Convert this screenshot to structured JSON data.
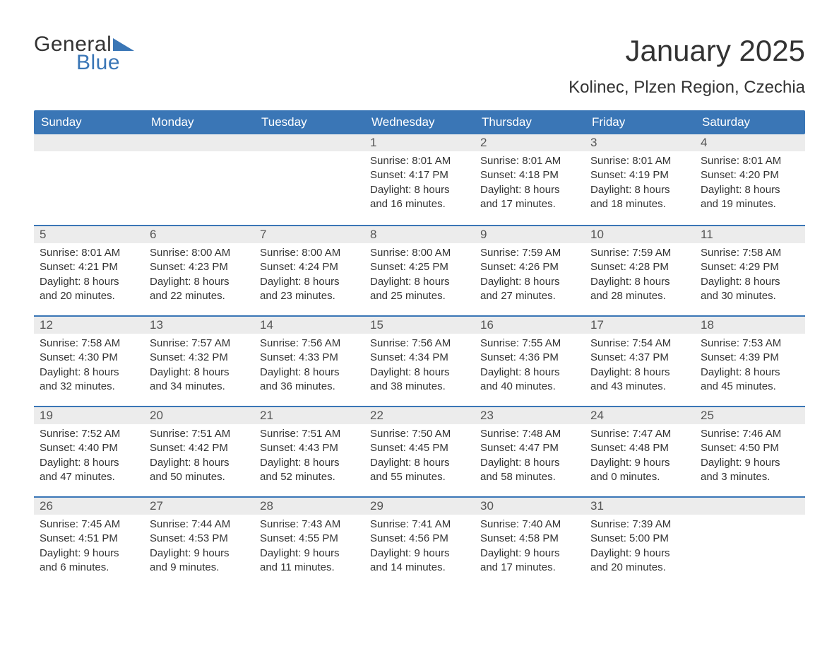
{
  "logo": {
    "text1": "General",
    "text2": "Blue",
    "tri_color": "#3a76b6"
  },
  "header": {
    "month_title": "January 2025",
    "location": "Kolinec, Plzen Region, Czechia"
  },
  "colors": {
    "header_bg": "#3a76b6",
    "header_text": "#ffffff",
    "daynum_bg": "#ececec",
    "border": "#3a76b6",
    "text": "#333333"
  },
  "day_names": [
    "Sunday",
    "Monday",
    "Tuesday",
    "Wednesday",
    "Thursday",
    "Friday",
    "Saturday"
  ],
  "weeks": [
    [
      {
        "day": "",
        "sunrise": "",
        "sunset": "",
        "daylight": ""
      },
      {
        "day": "",
        "sunrise": "",
        "sunset": "",
        "daylight": ""
      },
      {
        "day": "",
        "sunrise": "",
        "sunset": "",
        "daylight": ""
      },
      {
        "day": "1",
        "sunrise": "Sunrise: 8:01 AM",
        "sunset": "Sunset: 4:17 PM",
        "daylight": "Daylight: 8 hours and 16 minutes."
      },
      {
        "day": "2",
        "sunrise": "Sunrise: 8:01 AM",
        "sunset": "Sunset: 4:18 PM",
        "daylight": "Daylight: 8 hours and 17 minutes."
      },
      {
        "day": "3",
        "sunrise": "Sunrise: 8:01 AM",
        "sunset": "Sunset: 4:19 PM",
        "daylight": "Daylight: 8 hours and 18 minutes."
      },
      {
        "day": "4",
        "sunrise": "Sunrise: 8:01 AM",
        "sunset": "Sunset: 4:20 PM",
        "daylight": "Daylight: 8 hours and 19 minutes."
      }
    ],
    [
      {
        "day": "5",
        "sunrise": "Sunrise: 8:01 AM",
        "sunset": "Sunset: 4:21 PM",
        "daylight": "Daylight: 8 hours and 20 minutes."
      },
      {
        "day": "6",
        "sunrise": "Sunrise: 8:00 AM",
        "sunset": "Sunset: 4:23 PM",
        "daylight": "Daylight: 8 hours and 22 minutes."
      },
      {
        "day": "7",
        "sunrise": "Sunrise: 8:00 AM",
        "sunset": "Sunset: 4:24 PM",
        "daylight": "Daylight: 8 hours and 23 minutes."
      },
      {
        "day": "8",
        "sunrise": "Sunrise: 8:00 AM",
        "sunset": "Sunset: 4:25 PM",
        "daylight": "Daylight: 8 hours and 25 minutes."
      },
      {
        "day": "9",
        "sunrise": "Sunrise: 7:59 AM",
        "sunset": "Sunset: 4:26 PM",
        "daylight": "Daylight: 8 hours and 27 minutes."
      },
      {
        "day": "10",
        "sunrise": "Sunrise: 7:59 AM",
        "sunset": "Sunset: 4:28 PM",
        "daylight": "Daylight: 8 hours and 28 minutes."
      },
      {
        "day": "11",
        "sunrise": "Sunrise: 7:58 AM",
        "sunset": "Sunset: 4:29 PM",
        "daylight": "Daylight: 8 hours and 30 minutes."
      }
    ],
    [
      {
        "day": "12",
        "sunrise": "Sunrise: 7:58 AM",
        "sunset": "Sunset: 4:30 PM",
        "daylight": "Daylight: 8 hours and 32 minutes."
      },
      {
        "day": "13",
        "sunrise": "Sunrise: 7:57 AM",
        "sunset": "Sunset: 4:32 PM",
        "daylight": "Daylight: 8 hours and 34 minutes."
      },
      {
        "day": "14",
        "sunrise": "Sunrise: 7:56 AM",
        "sunset": "Sunset: 4:33 PM",
        "daylight": "Daylight: 8 hours and 36 minutes."
      },
      {
        "day": "15",
        "sunrise": "Sunrise: 7:56 AM",
        "sunset": "Sunset: 4:34 PM",
        "daylight": "Daylight: 8 hours and 38 minutes."
      },
      {
        "day": "16",
        "sunrise": "Sunrise: 7:55 AM",
        "sunset": "Sunset: 4:36 PM",
        "daylight": "Daylight: 8 hours and 40 minutes."
      },
      {
        "day": "17",
        "sunrise": "Sunrise: 7:54 AM",
        "sunset": "Sunset: 4:37 PM",
        "daylight": "Daylight: 8 hours and 43 minutes."
      },
      {
        "day": "18",
        "sunrise": "Sunrise: 7:53 AM",
        "sunset": "Sunset: 4:39 PM",
        "daylight": "Daylight: 8 hours and 45 minutes."
      }
    ],
    [
      {
        "day": "19",
        "sunrise": "Sunrise: 7:52 AM",
        "sunset": "Sunset: 4:40 PM",
        "daylight": "Daylight: 8 hours and 47 minutes."
      },
      {
        "day": "20",
        "sunrise": "Sunrise: 7:51 AM",
        "sunset": "Sunset: 4:42 PM",
        "daylight": "Daylight: 8 hours and 50 minutes."
      },
      {
        "day": "21",
        "sunrise": "Sunrise: 7:51 AM",
        "sunset": "Sunset: 4:43 PM",
        "daylight": "Daylight: 8 hours and 52 minutes."
      },
      {
        "day": "22",
        "sunrise": "Sunrise: 7:50 AM",
        "sunset": "Sunset: 4:45 PM",
        "daylight": "Daylight: 8 hours and 55 minutes."
      },
      {
        "day": "23",
        "sunrise": "Sunrise: 7:48 AM",
        "sunset": "Sunset: 4:47 PM",
        "daylight": "Daylight: 8 hours and 58 minutes."
      },
      {
        "day": "24",
        "sunrise": "Sunrise: 7:47 AM",
        "sunset": "Sunset: 4:48 PM",
        "daylight": "Daylight: 9 hours and 0 minutes."
      },
      {
        "day": "25",
        "sunrise": "Sunrise: 7:46 AM",
        "sunset": "Sunset: 4:50 PM",
        "daylight": "Daylight: 9 hours and 3 minutes."
      }
    ],
    [
      {
        "day": "26",
        "sunrise": "Sunrise: 7:45 AM",
        "sunset": "Sunset: 4:51 PM",
        "daylight": "Daylight: 9 hours and 6 minutes."
      },
      {
        "day": "27",
        "sunrise": "Sunrise: 7:44 AM",
        "sunset": "Sunset: 4:53 PM",
        "daylight": "Daylight: 9 hours and 9 minutes."
      },
      {
        "day": "28",
        "sunrise": "Sunrise: 7:43 AM",
        "sunset": "Sunset: 4:55 PM",
        "daylight": "Daylight: 9 hours and 11 minutes."
      },
      {
        "day": "29",
        "sunrise": "Sunrise: 7:41 AM",
        "sunset": "Sunset: 4:56 PM",
        "daylight": "Daylight: 9 hours and 14 minutes."
      },
      {
        "day": "30",
        "sunrise": "Sunrise: 7:40 AM",
        "sunset": "Sunset: 4:58 PM",
        "daylight": "Daylight: 9 hours and 17 minutes."
      },
      {
        "day": "31",
        "sunrise": "Sunrise: 7:39 AM",
        "sunset": "Sunset: 5:00 PM",
        "daylight": "Daylight: 9 hours and 20 minutes."
      },
      {
        "day": "",
        "sunrise": "",
        "sunset": "",
        "daylight": ""
      }
    ]
  ]
}
